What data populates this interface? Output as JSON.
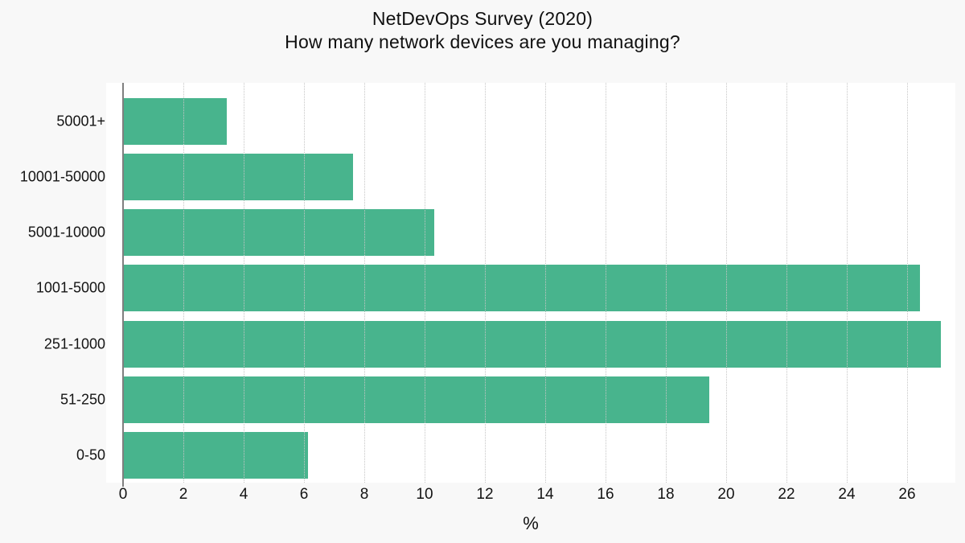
{
  "title": {
    "line1": "NetDevOps Survey (2020)",
    "line2": "How many network devices are you managing?"
  },
  "chart_data": {
    "type": "bar",
    "orientation": "horizontal",
    "title": "NetDevOps Survey (2020) — How many network devices are you managing?",
    "categories": [
      "50001+",
      "10001-50000",
      "5001-10000",
      "1001-5000",
      "251-1000",
      "51-250",
      "0-50"
    ],
    "values": [
      3.4,
      7.6,
      10.3,
      26.4,
      27.1,
      19.4,
      6.1
    ],
    "xlabel": "%",
    "ylabel": "",
    "xlim": [
      0,
      27.6
    ],
    "xticks": [
      0,
      2,
      4,
      6,
      8,
      10,
      12,
      14,
      16,
      18,
      20,
      22,
      24,
      26
    ],
    "grid": "dotted-vertical-above-bars",
    "legend": "none",
    "bar_color": "#48b48d",
    "zeroline_color": "#7f7f7f",
    "gridline_color": "#c6c6c6",
    "background": "#f8f8f8",
    "plot_background": "#ffffff"
  }
}
